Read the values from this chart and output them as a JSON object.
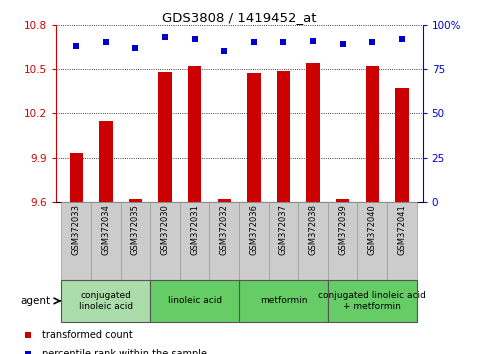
{
  "title": "GDS3808 / 1419452_at",
  "samples": [
    "GSM372033",
    "GSM372034",
    "GSM372035",
    "GSM372030",
    "GSM372031",
    "GSM372032",
    "GSM372036",
    "GSM372037",
    "GSM372038",
    "GSM372039",
    "GSM372040",
    "GSM372041"
  ],
  "bar_values": [
    9.93,
    10.15,
    9.62,
    10.48,
    10.52,
    9.62,
    10.47,
    10.49,
    10.54,
    9.62,
    10.52,
    10.37
  ],
  "percentile_values": [
    88,
    90,
    87,
    93,
    92,
    85,
    90,
    90,
    91,
    89,
    90,
    92
  ],
  "bar_color": "#cc0000",
  "percentile_color": "#0000cc",
  "ylim": [
    9.6,
    10.8
  ],
  "y2lim": [
    0,
    100
  ],
  "yticks": [
    9.6,
    9.9,
    10.2,
    10.5,
    10.8
  ],
  "y2ticks": [
    0,
    25,
    50,
    75,
    100
  ],
  "ytick_labels": [
    "9.6",
    "9.9",
    "10.2",
    "10.5",
    "10.8"
  ],
  "y2tick_labels": [
    "0",
    "25",
    "50",
    "75",
    "100%"
  ],
  "groups": [
    {
      "label": "conjugated\nlinoleic acid",
      "start": 0,
      "end": 3,
      "color": "#aaddaa"
    },
    {
      "label": "linoleic acid",
      "start": 3,
      "end": 6,
      "color": "#66cc66"
    },
    {
      "label": "metformin",
      "start": 6,
      "end": 9,
      "color": "#66cc66"
    },
    {
      "label": "conjugated linoleic acid\n+ metformin",
      "start": 9,
      "end": 12,
      "color": "#66cc66"
    }
  ],
  "agent_label": "agent",
  "legend_items": [
    {
      "label": "transformed count",
      "color": "#cc0000"
    },
    {
      "label": "percentile rank within the sample",
      "color": "#0000cc"
    }
  ],
  "bar_width": 0.45,
  "yaxis_color": "#cc0000",
  "y2axis_color": "#0000cc",
  "sample_bg": "#cccccc",
  "sample_border": "#999999"
}
